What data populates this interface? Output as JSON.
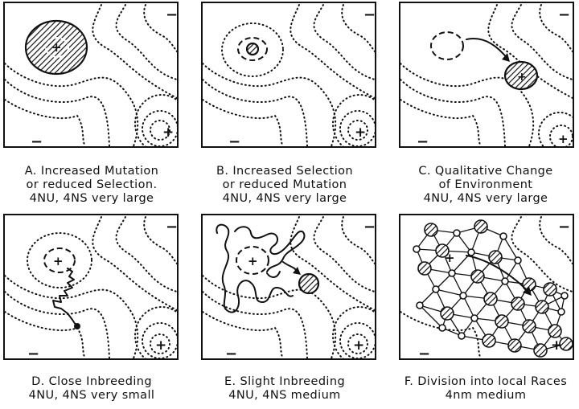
{
  "panels": [
    {
      "id": "A",
      "caption": [
        "A. Increased  Mutation",
        "or  reduced  Selection.",
        "4NU, 4NS  very  large"
      ]
    },
    {
      "id": "B",
      "caption": [
        "B. Increased  Selection",
        "or  reduced  Mutation",
        "4NU, 4NS  very  large"
      ]
    },
    {
      "id": "C",
      "caption": [
        "C. Qualitative  Change",
        "of  Environment",
        "4NU, 4NS  very  large"
      ]
    },
    {
      "id": "D",
      "caption": [
        "D. Close  Inbreeding",
        "4NU, 4NS  very  small"
      ]
    },
    {
      "id": "E",
      "caption": [
        "E. Slight  Inbreeding",
        "4NU, 4NS  medium"
      ]
    },
    {
      "id": "F",
      "caption": [
        "F. Division into local Races",
        "4nm  medium"
      ]
    }
  ],
  "symbols": {
    "plus": "+",
    "minus": "−"
  }
}
